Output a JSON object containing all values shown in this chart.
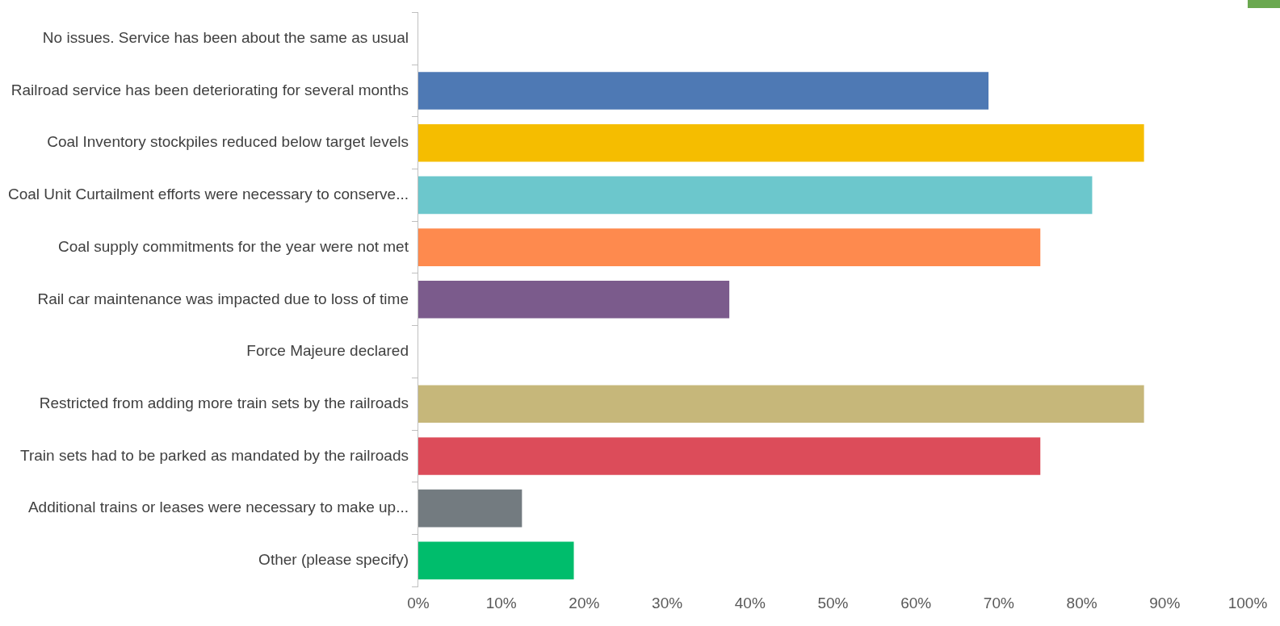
{
  "chart_data": {
    "type": "bar",
    "orientation": "horizontal",
    "categories": [
      "No issues. Service has been about the same as usual",
      "Railroad service has been deteriorating for several months",
      "Coal Inventory stockpiles reduced below target levels",
      "Coal Unit Curtailment efforts were necessary to conserve...",
      "Coal supply commitments for the year were not met",
      "Rail car maintenance was impacted due to loss of time",
      "Force Majeure declared",
      "Restricted from adding more train sets by the railroads",
      "Train sets had to be parked as mandated by the railroads",
      "Additional trains or leases were necessary to make up...",
      "Other (please specify)"
    ],
    "values": [
      0,
      68.75,
      87.5,
      81.25,
      75,
      37.5,
      0,
      87.5,
      75,
      12.5,
      18.75
    ],
    "colors": [
      "#4e79b4",
      "#4e79b4",
      "#f5bd00",
      "#6cc7cc",
      "#fe8a4e",
      "#7b5b8c",
      "#888888",
      "#c6b77a",
      "#dc4c5a",
      "#737b80",
      "#00bd6c"
    ],
    "xlim": [
      0,
      100
    ],
    "xticks": [
      {
        "value": 0,
        "label": "0%"
      },
      {
        "value": 10,
        "label": "10%"
      },
      {
        "value": 20,
        "label": "20%"
      },
      {
        "value": 30,
        "label": "30%"
      },
      {
        "value": 40,
        "label": "40%"
      },
      {
        "value": 50,
        "label": "50%"
      },
      {
        "value": 60,
        "label": "60%"
      },
      {
        "value": 70,
        "label": "70%"
      },
      {
        "value": 80,
        "label": "80%"
      },
      {
        "value": 90,
        "label": "90%"
      },
      {
        "value": 100,
        "label": "100%"
      }
    ],
    "grid": false,
    "legend": false
  }
}
